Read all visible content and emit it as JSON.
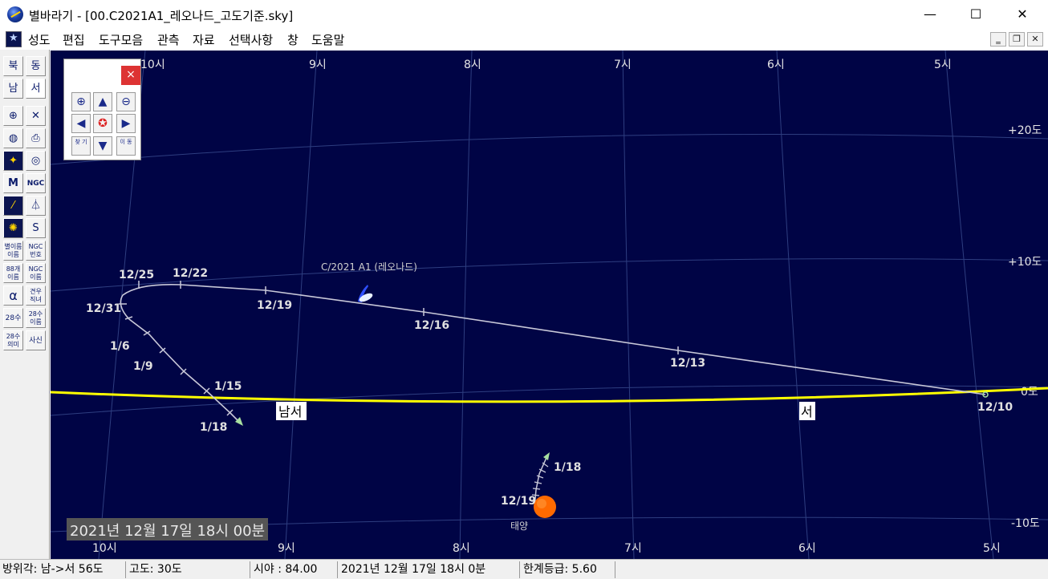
{
  "window": {
    "title": "별바라기 - [00.C2021A1_레오나드_고도기준.sky]",
    "minimize": "—",
    "maximize": "☐",
    "close": "✕"
  },
  "menu": {
    "items": [
      "성도",
      "편집",
      "도구모음",
      "관측",
      "자료",
      "선택사항",
      "창",
      "도움말"
    ],
    "mdi_minimize": "‗",
    "mdi_restore": "❐",
    "mdi_close": "✕"
  },
  "toolbar": {
    "north": "북",
    "east": "동",
    "south": "남",
    "west": "서",
    "m_label": "M",
    "ngc_label": "NGC",
    "star_name": "별이름 이름",
    "ngc_number": "NGC 번호",
    "star_name2": "88개 이름",
    "ngc_name": "NGC 이름",
    "alpha": "α",
    "constellation_name": "견우 직녀",
    "lunar28": "28수",
    "lunar28_name": "28수 이름",
    "lunar28_meaning": "28수 의미",
    "misc": "사신"
  },
  "navigator": {
    "close": "×",
    "find_label": "찾 기",
    "move_label": "이 동"
  },
  "sky": {
    "top_ra_labels": [
      "10시",
      "9시",
      "8시",
      "7시",
      "6시",
      "5시"
    ],
    "bottom_ra_labels": [
      "10시",
      "9시",
      "8시",
      "7시",
      "6시",
      "5시"
    ],
    "dec_labels": [
      "+20도",
      "+10도",
      "0도",
      "-10도"
    ],
    "horizon_labels": [
      "남서",
      "서"
    ],
    "comet_name": "C/2021 A1 (레오나드)",
    "comet_dates": [
      "12/25",
      "12/22",
      "12/31",
      "12/19",
      "12/16",
      "12/13",
      "12/10",
      "1/6",
      "1/9",
      "1/15",
      "1/18"
    ],
    "sun_dates": [
      "1/18",
      "12/19"
    ],
    "sun_label": "태양",
    "date_overlay": "2021년 12월 17일 18시 00분",
    "colors": {
      "background": "#000445",
      "horizon": "#ffff00",
      "grid": "#2e3e80",
      "track": "#c8c8d8",
      "sun": "#ff6a00"
    }
  },
  "status": {
    "azimuth": "방위각: 남->서   56도",
    "altitude": "고도:   30도",
    "fov": "시야 : 84.00",
    "datetime": "2021년 12월 17일 18시   0분",
    "limit_mag": "한계등급:   5.60"
  }
}
